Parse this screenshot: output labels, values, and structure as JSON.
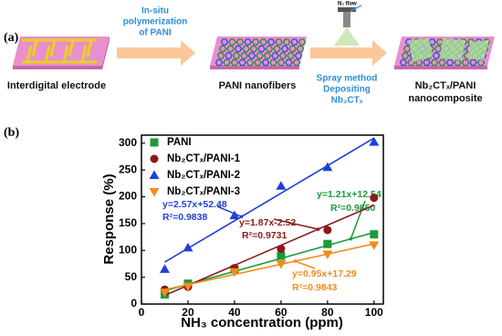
{
  "panel_a": {
    "label": "(a)",
    "arrow1_text": [
      "In-situ",
      "polymerization",
      "of PANI"
    ],
    "arrow2_text": [
      "Spray method",
      "Depositing",
      "Nb₂CTₓ"
    ],
    "gas": "N₂ flow",
    "captions": [
      "Interdigital electrode",
      "PANI nanofibers",
      "Nb₂CTₓ/PANI",
      "nanocomposite"
    ]
  },
  "panel_b_label": "(b)",
  "chart_data": {
    "type": "scatter",
    "x_label": "NH₃ concentration (ppm)",
    "y_label": "Response (%)",
    "xlim": [
      0,
      104
    ],
    "ylim": [
      0,
      315
    ],
    "xticks": [
      0,
      20,
      40,
      60,
      80,
      100
    ],
    "yticks": [
      0,
      50,
      100,
      150,
      200,
      250,
      300
    ],
    "legend": "upper left",
    "x": [
      10,
      20,
      40,
      60,
      80,
      100
    ],
    "series": [
      {
        "name": "PANI",
        "color": "#1a9a3a",
        "marker": "square",
        "values": [
          18,
          38,
          65,
          90,
          112,
          130
        ],
        "fit": {
          "slope": 1.21,
          "intercept": 12.54,
          "equation": "y=1.21x+12.54",
          "r2": 0.985,
          "r2_label": "R²=0.9850"
        }
      },
      {
        "name": "Nb₂CTₓ/PANI-1",
        "color": "#8b1a1a",
        "marker": "circle",
        "values": [
          27,
          32,
          67,
          103,
          138,
          198
        ],
        "fit": {
          "slope": 1.87,
          "intercept": -2.52,
          "equation": "y=1.87x-2.52",
          "r2": 0.9731,
          "r2_label": "R²=0.9731"
        }
      },
      {
        "name": "Nb₂CTₓ/PANI-2",
        "color": "#1f3fd8",
        "marker": "triangle-up",
        "values": [
          65,
          105,
          165,
          220,
          255,
          302
        ],
        "fit": {
          "slope": 2.57,
          "intercept": 52.48,
          "equation": "y=2.57x+52.48",
          "r2": 0.9838,
          "r2_label": "R²=0.9838"
        }
      },
      {
        "name": "Nb₂CTₓ/PANI-3",
        "color": "#f28c1a",
        "marker": "triangle-down",
        "values": [
          22,
          33,
          60,
          75,
          93,
          110
        ],
        "fit": {
          "slope": 0.95,
          "intercept": 17.29,
          "equation": "y=0.95x+17.29",
          "r2": 0.9843,
          "r2_label": "R²=0.9843"
        }
      }
    ]
  }
}
